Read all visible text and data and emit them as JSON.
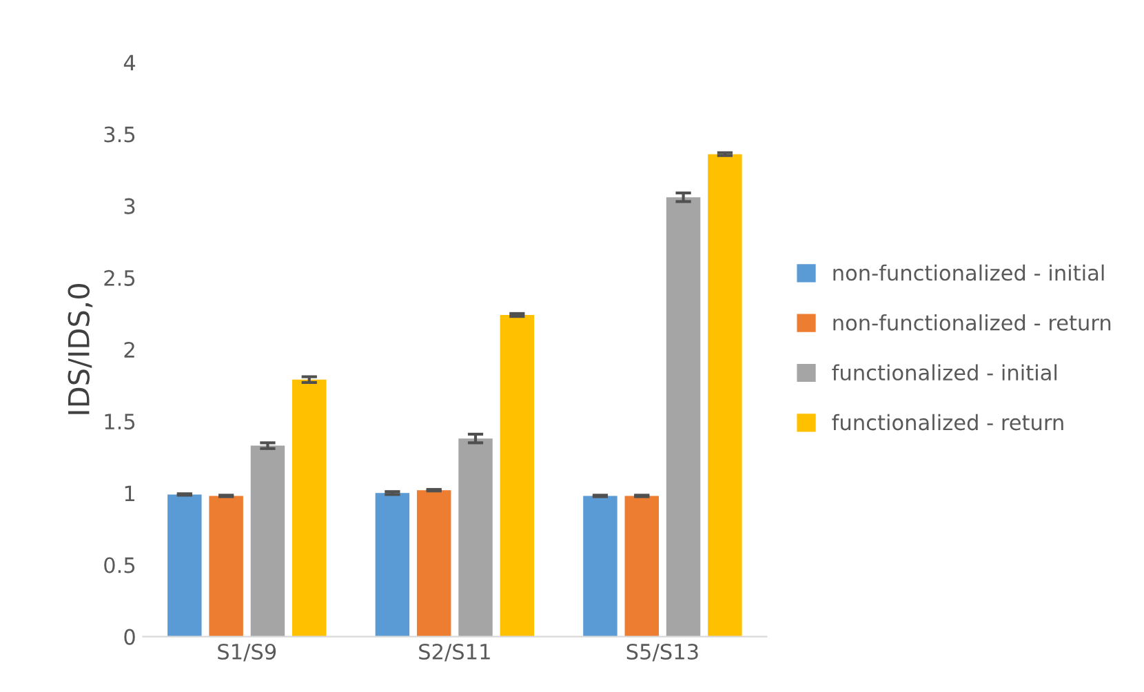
{
  "chart_data": {
    "type": "bar",
    "ylabel": "IDS/IDS,0",
    "categories": [
      "S1/S9",
      "S2/S11",
      "S5/S13"
    ],
    "series": [
      {
        "name": "non-functionalized - initial",
        "color": "#5b9bd5",
        "values": [
          0.99,
          1.0,
          0.98
        ],
        "errors": [
          0.005,
          0.01,
          0.005
        ]
      },
      {
        "name": "non-functionalized - return",
        "color": "#ed7d31",
        "values": [
          0.98,
          1.02,
          0.98
        ],
        "errors": [
          0.005,
          0.005,
          0.005
        ]
      },
      {
        "name": "functionalized - initial",
        "color": "#a5a5a5",
        "values": [
          1.33,
          1.38,
          3.06
        ],
        "errors": [
          0.02,
          0.03,
          0.03
        ]
      },
      {
        "name": "functionalized - return",
        "color": "#ffc000",
        "values": [
          1.79,
          2.24,
          3.36
        ],
        "errors": [
          0.02,
          0.01,
          0.01
        ]
      }
    ],
    "ylim": [
      0,
      4
    ],
    "yticks": [
      0,
      0.5,
      1,
      1.5,
      2,
      2.5,
      3,
      3.5,
      4
    ],
    "grid": false,
    "legend": "right"
  }
}
